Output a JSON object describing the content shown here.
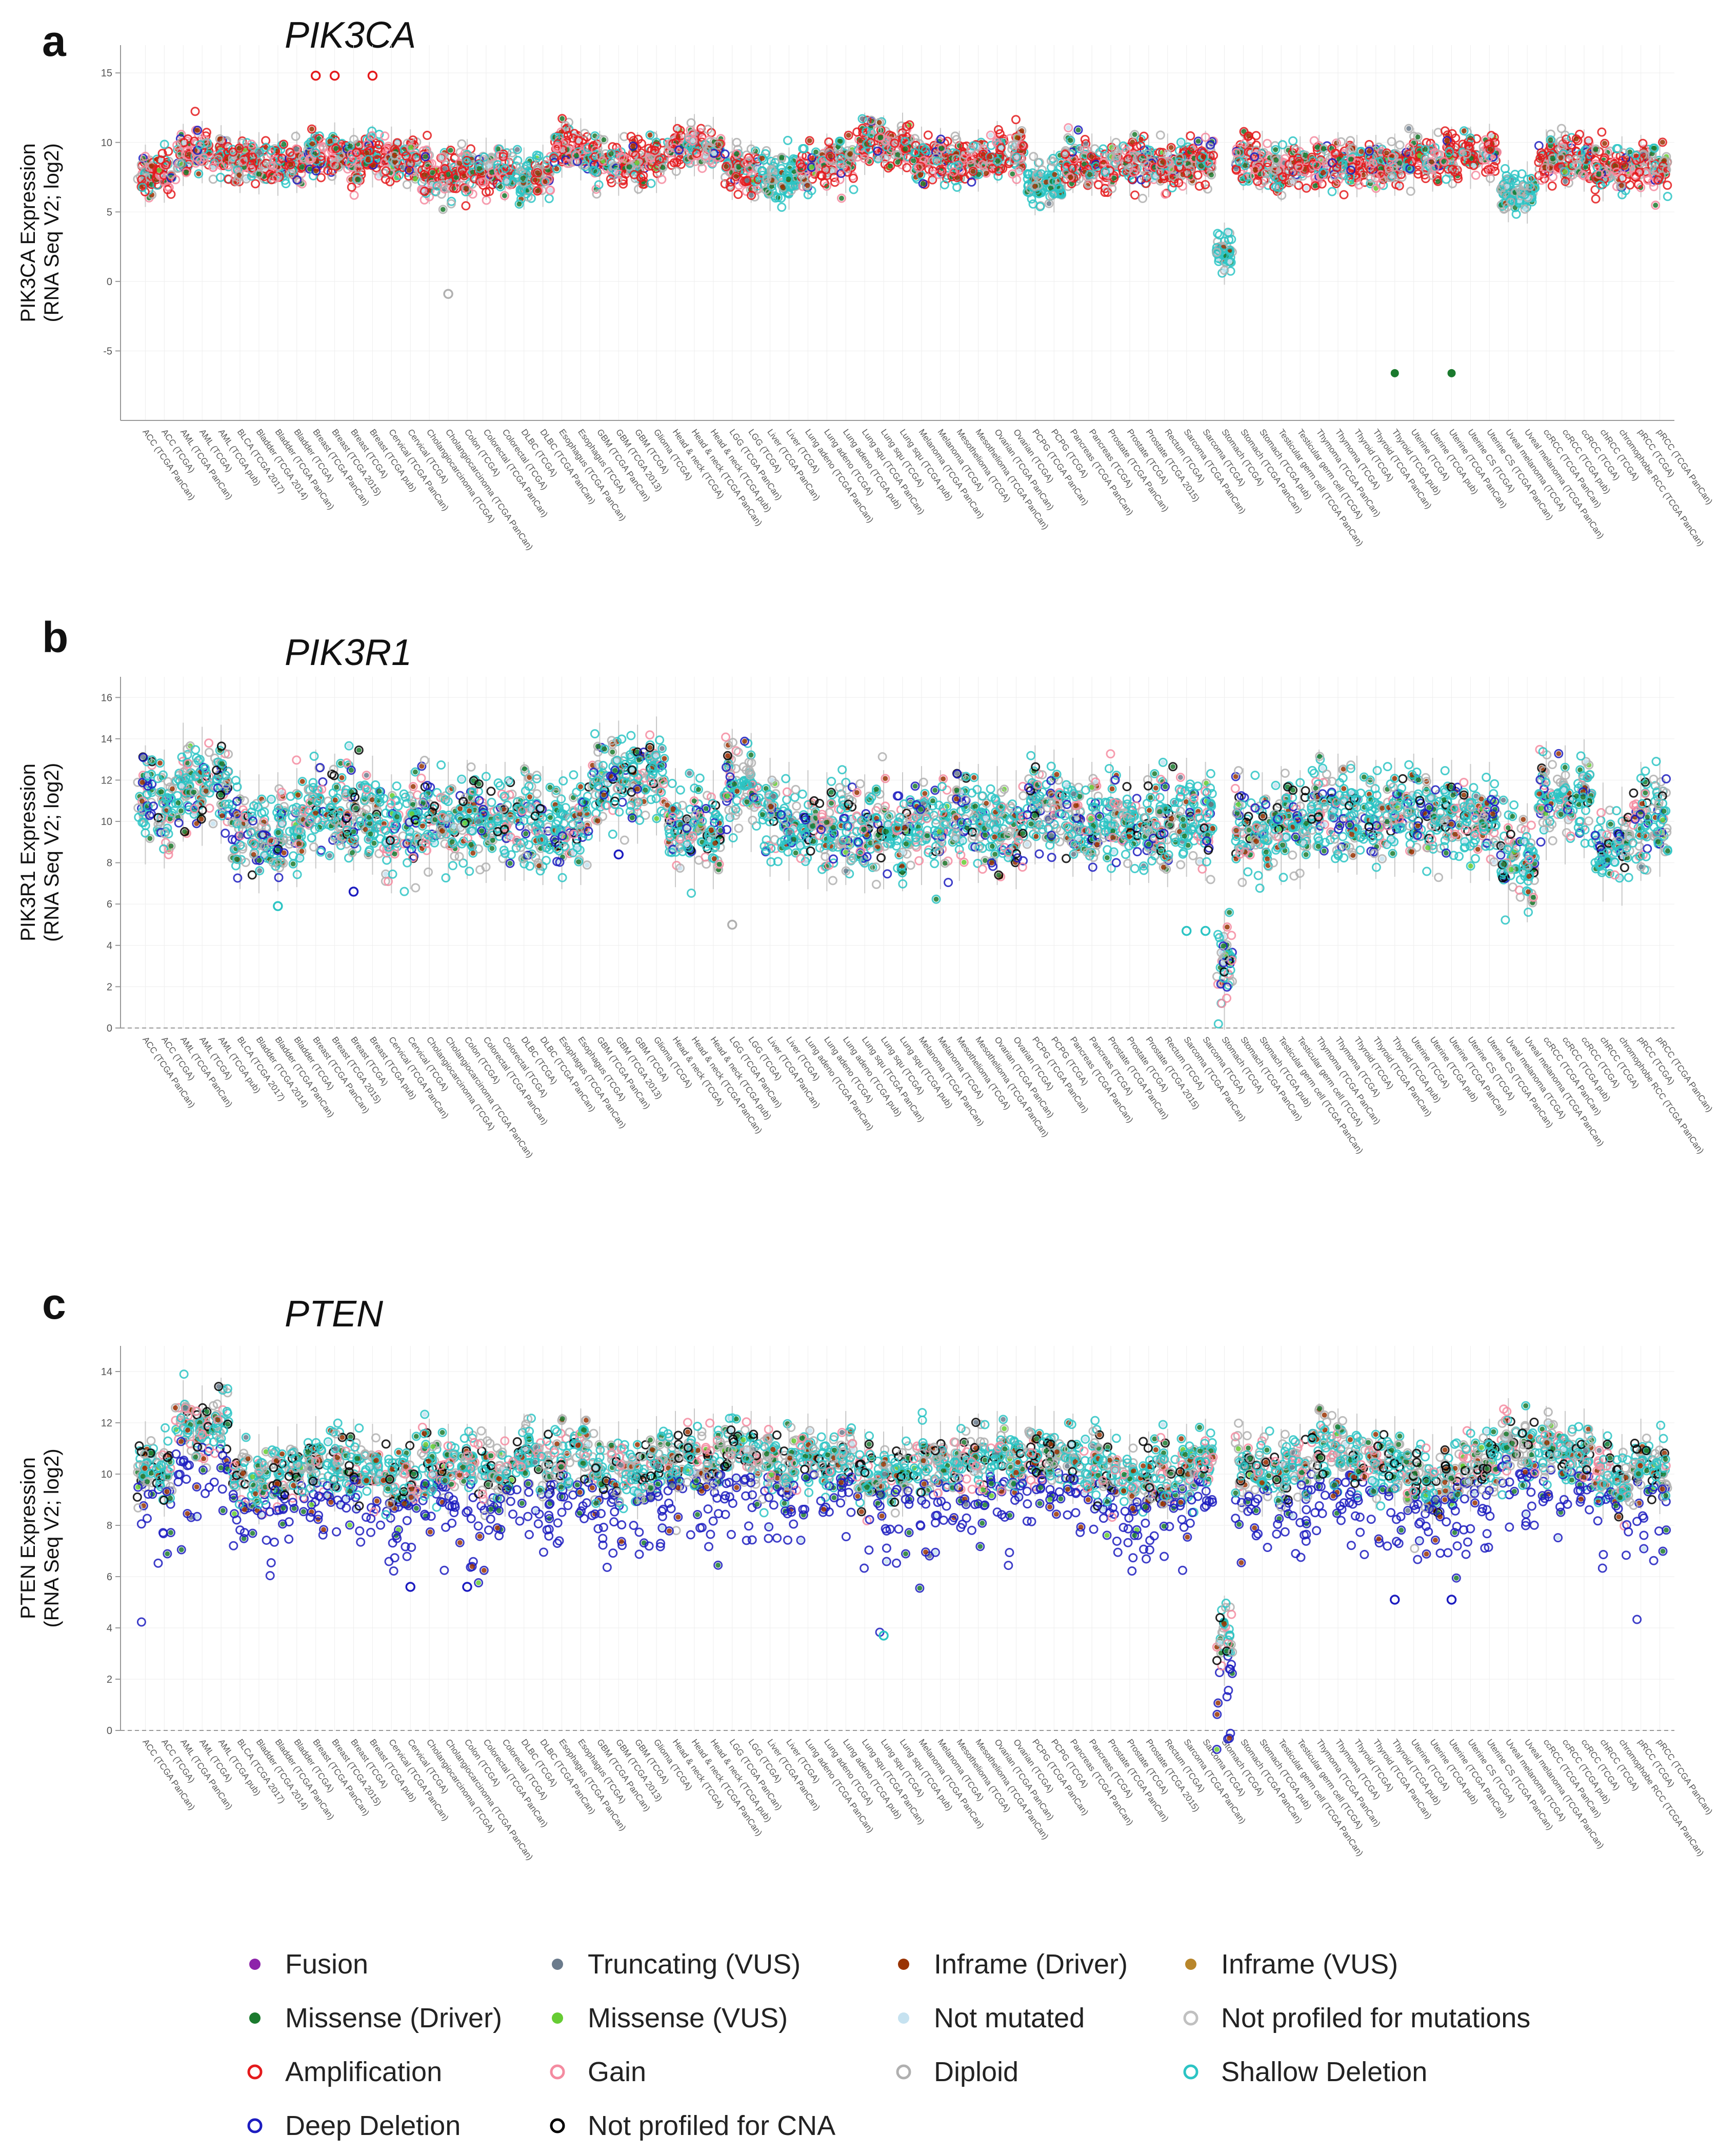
{
  "categories": [
    "ACC (TCGA PanCan)",
    "ACC (TCGA)",
    "AML (TCGA PanCan)",
    "AML (TCGA)",
    "AML (TCGA pub)",
    "BLCA (TCGA 2017)",
    "Bladder (TCGA 2014)",
    "Bladder (TCGA PanCan)",
    "Bladder (TCGA)",
    "Breast (TCGA PanCan)",
    "Breast (TCGA 2015)",
    "Breast (TCGA)",
    "Breast (TCGA pub)",
    "Cervical (TCGA PanCan)",
    "Cervical (TCGA)",
    "Cholangiocarcinoma (TCGA)",
    "Cholangiocarcinoma (TCGA PanCan)",
    "Colon (TCGA)",
    "Colorectal (TCGA PanCan)",
    "Colorectal (TCGA)",
    "DLBC (TCGA)",
    "DLBC (TCGA PanCan)",
    "Esophagus (TCGA PanCan)",
    "Esophagus (TCGA)",
    "GBM (TCGA PanCan)",
    "GBM (TCGA 2013)",
    "GBM (TCGA)",
    "Glioma (TCGA)",
    "Head & neck (TCGA)",
    "Head & neck (TCGA PanCan)",
    "Head & neck (TCGA pub)",
    "LGG (TCGA PanCan)",
    "LGG (TCGA)",
    "Liver (TCGA PanCan)",
    "Liver (TCGA)",
    "Lung adeno (TCGA PanCan)",
    "Lung adeno (TCGA)",
    "Lung adeno (TCGA pub)",
    "Lung squ (TCGA PanCan)",
    "Lung squ (TCGA)",
    "Lung squ (TCGA pub)",
    "Melanoma (TCGA PanCan)",
    "Melanoma (TCGA)",
    "Mesothelioma (TCGA)",
    "Mesothelioma (TCGA PanCan)",
    "Ovarian (TCGA PanCan)",
    "Ovarian (TCGA)",
    "PCPG (TCGA PanCan)",
    "PCPG (TCGA)",
    "Pancreas (TCGA PanCan)",
    "Pancreas (TCGA)",
    "Prostate (TCGA PanCan)",
    "Prostate (TCGA)",
    "Prostate (TCGA 2015)",
    "Rectum (TCGA)",
    "Sarcoma (TCGA PanCan)",
    "Sarcoma (TCGA)",
    "Stomach (TCGA)",
    "Stomach (TCGA PanCan)",
    "Stomach (TCGA pub)",
    "Testicular germ cell (TCGA PanCan)",
    "Testicular germ cell (TCGA)",
    "Thymoma (TCGA PanCan)",
    "Thymoma (TCGA)",
    "Thyroid (TCGA)",
    "Thyroid (TCGA PanCan)",
    "Thyroid (TCGA pub)",
    "Uterine (TCGA)",
    "Uterine (TCGA pub)",
    "Uterine (TCGA PanCan)",
    "Uterine CS (TCGA)",
    "Uterine CS (TCGA PanCan)",
    "Uveal melanoma (TCGA)",
    "Uveal melanoma (TCGA PanCan)",
    "ccRCC (TCGA PanCan)",
    "ccRCC (TCGA pub)",
    "ccRCC (TCGA)",
    "chRCC (TCGA)",
    "chromophobe RCC (TCGA PanCan)",
    "pRCC (TCGA)",
    "pRCC (TCGA PanCan)"
  ],
  "chart_data": [
    {
      "type": "scatter",
      "panel": "a",
      "title": "PIK3CA",
      "ylabel": "PIK3CA Expression\n(RNA Seq V2; log2)",
      "ylim": [
        -10,
        17
      ],
      "yticks": [
        15,
        10,
        5,
        0,
        -5
      ],
      "grid": true,
      "medians": [
        7.6,
        7.9,
        9.1,
        9.3,
        9.0,
        8.6,
        8.5,
        8.4,
        8.6,
        9.0,
        9.2,
        8.8,
        9.0,
        8.9,
        8.7,
        7.8,
        7.6,
        8.0,
        8.1,
        8.0,
        7.4,
        7.6,
        9.7,
        9.5,
        8.6,
        8.4,
        8.5,
        8.6,
        9.6,
        9.8,
        9.6,
        8.1,
        7.9,
        7.3,
        7.4,
        8.2,
        8.4,
        8.6,
        9.9,
        9.7,
        9.9,
        8.9,
        8.8,
        8.6,
        8.7,
        9.3,
        9.1,
        7.0,
        7.2,
        8.6,
        8.4,
        8.2,
        8.4,
        8.3,
        8.4,
        8.5,
        8.6,
        2.0,
        8.8,
        8.6,
        8.0,
        8.2,
        8.3,
        8.5,
        8.3,
        8.3,
        8.4,
        8.8,
        8.7,
        8.9,
        8.9,
        9.1,
        6.5,
        6.4,
        8.7,
        8.9,
        8.7,
        8.0,
        8.2,
        8.3,
        8.1
      ],
      "spread": 1.4,
      "outliers": [
        {
          "category": "Breast (TCGA PanCan)",
          "y": 14.8,
          "class": "Amplification"
        },
        {
          "category": "Breast (TCGA 2015)",
          "y": 14.8,
          "class": "Amplification"
        },
        {
          "category": "Breast (TCGA pub)",
          "y": 14.8,
          "class": "Amplification"
        },
        {
          "category": "Cholangiocarcinoma (TCGA PanCan)",
          "y": -0.9,
          "class": "Diploid"
        },
        {
          "category": "Thyroid (TCGA pub)",
          "y": -6.6,
          "class": "Missense (Driver)"
        },
        {
          "category": "Uterine (TCGA PanCan)",
          "y": -6.6,
          "class": "Missense (Driver)"
        }
      ]
    },
    {
      "type": "scatter",
      "panel": "b",
      "title": "PIK3R1",
      "ylabel": "PIK3R1 Expression\n(RNA Seq V2; log2)",
      "ylim": [
        0,
        17
      ],
      "yticks": [
        16,
        14,
        12,
        10,
        8,
        6,
        4,
        2,
        0
      ],
      "grid": true,
      "medians": [
        10.8,
        10.6,
        11.9,
        11.7,
        11.8,
        9.6,
        9.4,
        9.5,
        9.7,
        10.6,
        10.4,
        10.5,
        10.3,
        9.4,
        9.6,
        10.2,
        10.0,
        10.1,
        9.9,
        10.0,
        10.0,
        9.8,
        9.6,
        9.8,
        11.9,
        12.0,
        11.8,
        12.2,
        9.7,
        9.5,
        9.6,
        11.6,
        11.4,
        10.2,
        10.0,
        9.6,
        9.5,
        9.8,
        9.4,
        9.6,
        9.5,
        9.8,
        9.6,
        10.0,
        9.9,
        9.8,
        9.6,
        10.8,
        10.6,
        10.2,
        10.0,
        10.0,
        9.8,
        9.9,
        9.7,
        10.2,
        10.0,
        2.8,
        9.7,
        9.5,
        9.8,
        9.6,
        10.6,
        10.4,
        10.3,
        10.1,
        10.2,
        10.4,
        10.2,
        10.1,
        9.9,
        10.0,
        8.2,
        8.0,
        11.0,
        10.8,
        11.1,
        9.0,
        8.8,
        10.0,
        10.2
      ],
      "spread": 1.8,
      "outliers": [
        {
          "category": "Bladder (TCGA PanCan)",
          "y": 5.9,
          "class": "Shallow Deletion"
        },
        {
          "category": "Breast (TCGA)",
          "y": 6.6,
          "class": "Deep Deletion"
        },
        {
          "category": "GBM (TCGA 2013)",
          "y": 8.4,
          "class": "Deep Deletion"
        },
        {
          "category": "LGG (TCGA PanCan)",
          "y": 5.0,
          "class": "Diploid"
        },
        {
          "category": "Sarcoma (TCGA PanCan)",
          "y": 4.7,
          "class": "Shallow Deletion"
        },
        {
          "category": "Sarcoma (TCGA)",
          "y": 4.7,
          "class": "Shallow Deletion"
        }
      ]
    },
    {
      "type": "scatter",
      "panel": "c",
      "title": "PTEN",
      "ylabel": "PTEN Expression\n(RNA Seq V2; log2)",
      "ylim": [
        0,
        15
      ],
      "yticks": [
        14,
        12,
        10,
        8,
        6,
        4,
        2,
        0
      ],
      "grid": true,
      "medians": [
        10.3,
        10.1,
        11.9,
        11.7,
        12.0,
        10.0,
        9.8,
        10.1,
        10.2,
        10.5,
        10.3,
        10.4,
        10.2,
        9.8,
        10.0,
        10.4,
        10.2,
        10.2,
        10.0,
        10.1,
        10.6,
        10.4,
        10.6,
        10.8,
        10.1,
        10.3,
        10.0,
        10.5,
        10.7,
        10.8,
        10.6,
        10.9,
        10.7,
        10.5,
        10.3,
        10.6,
        10.4,
        10.7,
        10.0,
        9.9,
        10.1,
        10.4,
        10.3,
        10.5,
        10.6,
        10.7,
        10.5,
        10.9,
        10.7,
        10.6,
        10.4,
        10.0,
        9.8,
        9.9,
        10.0,
        10.2,
        10.4,
        3.5,
        10.3,
        10.1,
        10.0,
        10.2,
        11.0,
        10.8,
        10.6,
        10.4,
        10.5,
        10.0,
        9.8,
        10.1,
        10.3,
        10.4,
        11.2,
        11.0,
        10.9,
        10.7,
        10.8,
        10.0,
        9.8,
        10.4,
        10.2
      ],
      "spread": 1.1,
      "outliers": [
        {
          "category": "Cervical (TCGA)",
          "y": 5.6,
          "class": "Deep Deletion"
        },
        {
          "category": "Colon (TCGA)",
          "y": 5.6,
          "class": "Deep Deletion"
        },
        {
          "category": "Lung squ (TCGA)",
          "y": 3.7,
          "class": "Shallow Deletion"
        },
        {
          "category": "Thyroid (TCGA pub)",
          "y": 5.1,
          "class": "Deep Deletion"
        },
        {
          "category": "Uterine (TCGA PanCan)",
          "y": 5.1,
          "class": "Deep Deletion"
        }
      ]
    }
  ],
  "panels": [
    {
      "letter": "a",
      "gene": "PIK3CA"
    },
    {
      "letter": "b",
      "gene": "PIK3R1"
    },
    {
      "letter": "c",
      "gene": "PTEN"
    }
  ],
  "legend": [
    {
      "label": "Fusion",
      "marker": "filled",
      "color": "#8e24aa"
    },
    {
      "label": "Truncating (VUS)",
      "marker": "filled",
      "color": "#6b7b8c"
    },
    {
      "label": "Inframe (Driver)",
      "marker": "filled",
      "color": "#993404"
    },
    {
      "label": "Inframe (VUS)",
      "marker": "filled",
      "color": "#b8862b"
    },
    {
      "label": "Missense (Driver)",
      "marker": "filled",
      "color": "#1b7a2e"
    },
    {
      "label": "Missense (VUS)",
      "marker": "filled",
      "color": "#66cc33"
    },
    {
      "label": "Not mutated",
      "marker": "filled",
      "color": "#c6e2f0"
    },
    {
      "label": "Not profiled for mutations",
      "marker": "ring",
      "color": "#c0c0c0"
    },
    {
      "label": "Amplification",
      "marker": "ring",
      "color": "#e41a1c"
    },
    {
      "label": "Gain",
      "marker": "ring",
      "color": "#f48ba0"
    },
    {
      "label": "Diploid",
      "marker": "ring",
      "color": "#b0b0b0"
    },
    {
      "label": "Shallow Deletion",
      "marker": "ring",
      "color": "#2cc4c4"
    },
    {
      "label": "Deep Deletion",
      "marker": "ring",
      "color": "#1c1cc0"
    },
    {
      "label": "Not profiled for CNA",
      "marker": "ring",
      "color": "#000000"
    }
  ]
}
